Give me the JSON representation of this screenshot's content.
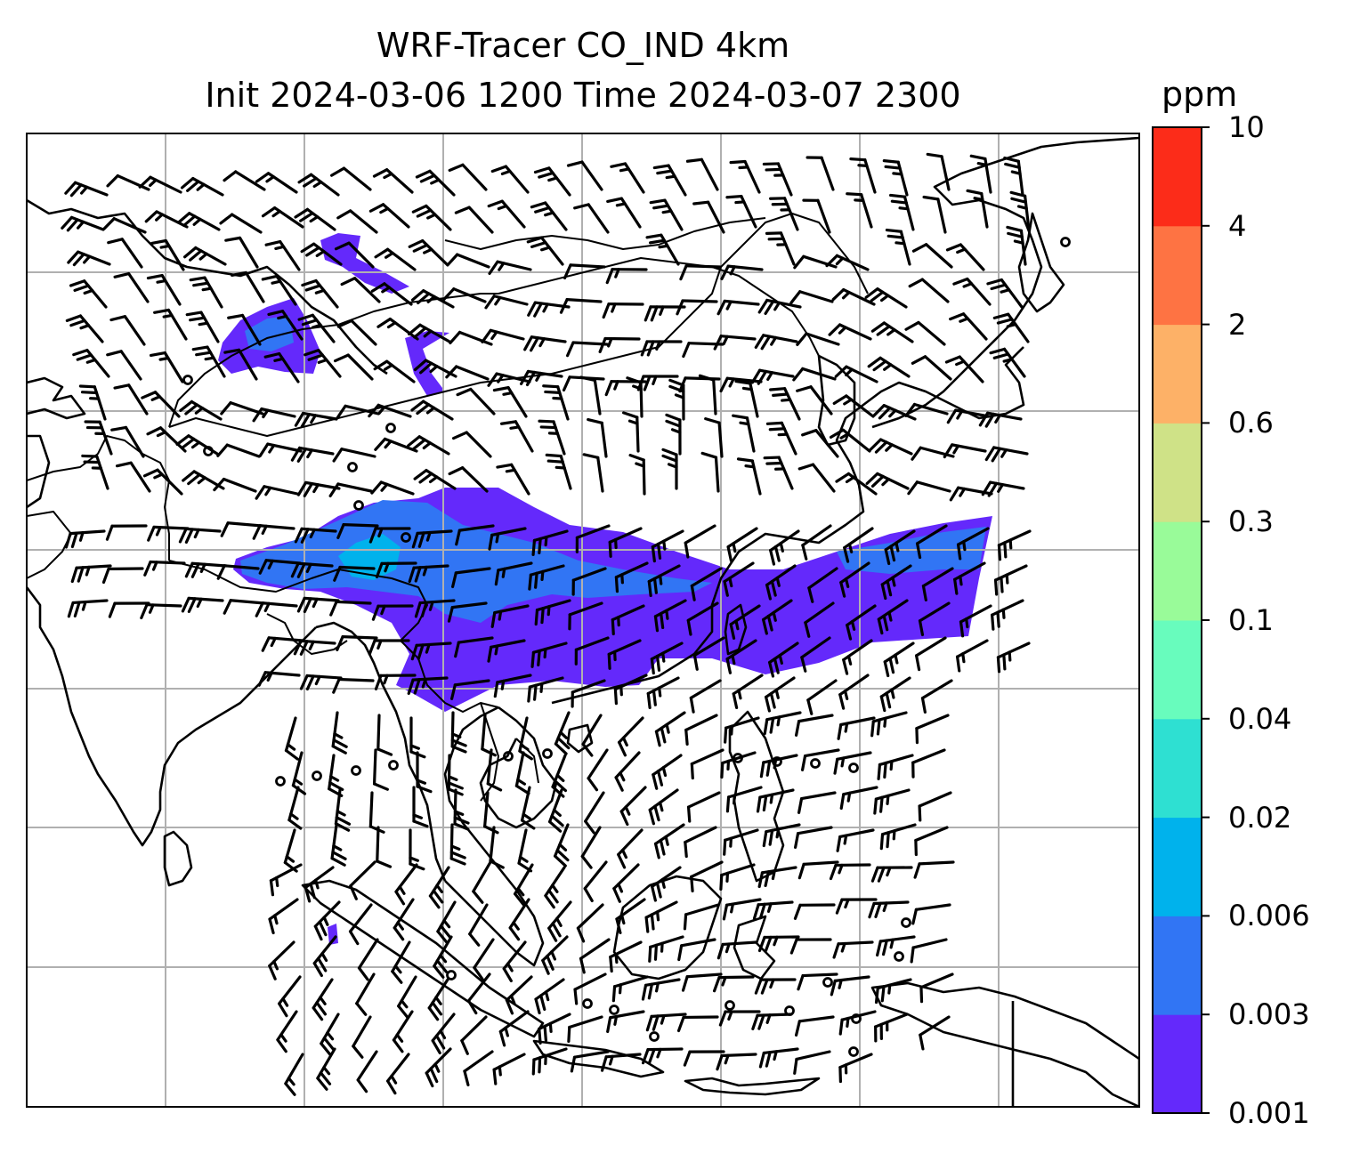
{
  "title": {
    "line1": "WRF-Tracer CO_IND 4km",
    "line2": "Init 2024-03-06 1200 Time 2024-03-07 2300"
  },
  "colorbar": {
    "unit": "ppm",
    "levels": [
      "0.001",
      "0.003",
      "0.006",
      "0.02",
      "0.04",
      "0.1",
      "0.3",
      "0.6",
      "2",
      "4",
      "10"
    ],
    "colors": [
      "#6429fb",
      "#3175f4",
      "#00b2ec",
      "#2ee0d2",
      "#68fcbd",
      "#99fb99",
      "#cfe287",
      "#fdb167",
      "#fe7343",
      "#fc2c19"
    ]
  },
  "map": {
    "gridline_color": "#b0b0b0",
    "coastline_color": "#000000",
    "plume_color": "#6429fb",
    "plume_inner_color": "#3175f4",
    "plume_core_color": "#00b2ec",
    "wind_barbs": "black"
  }
}
